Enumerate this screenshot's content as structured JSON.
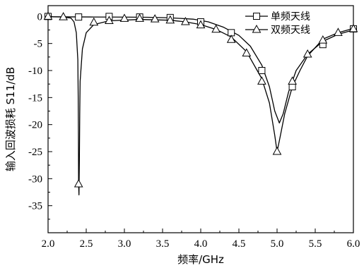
{
  "chart_data": {
    "type": "line",
    "title": "",
    "xlabel": "频率/GHz",
    "ylabel": "输入回波损耗 S11/dB",
    "xlim": [
      2.0,
      6.0
    ],
    "ylim": [
      -40,
      2
    ],
    "xticks": [
      "2.0",
      "2.5",
      "3.0",
      "3.5",
      "4.0",
      "4.5",
      "5.0",
      "5.5",
      "6.0"
    ],
    "yticks": [
      "0",
      "-5",
      "-10",
      "-15",
      "-20",
      "-25",
      "-30",
      "-35"
    ],
    "xtick_values": [
      2.0,
      2.5,
      3.0,
      3.5,
      4.0,
      4.5,
      5.0,
      5.5,
      6.0
    ],
    "ytick_values": [
      0,
      -5,
      -10,
      -15,
      -20,
      -25,
      -30,
      -35
    ],
    "grid": false,
    "legend_position": "top-right",
    "series": [
      {
        "name": "单频天线",
        "marker": "square",
        "curve": [
          [
            2.0,
            -0.05
          ],
          [
            2.3,
            -0.08
          ],
          [
            2.6,
            -0.1
          ],
          [
            3.0,
            -0.12
          ],
          [
            3.3,
            -0.15
          ],
          [
            3.6,
            -0.25
          ],
          [
            3.9,
            -0.5
          ],
          [
            4.1,
            -1.0
          ],
          [
            4.3,
            -2.0
          ],
          [
            4.5,
            -3.5
          ],
          [
            4.65,
            -5.5
          ],
          [
            4.8,
            -9.0
          ],
          [
            4.9,
            -13.0
          ],
          [
            4.97,
            -17.5
          ],
          [
            5.03,
            -19.7
          ],
          [
            5.08,
            -18.0
          ],
          [
            5.15,
            -14.0
          ],
          [
            5.25,
            -10.0
          ],
          [
            5.4,
            -7.0
          ],
          [
            5.6,
            -4.6
          ],
          [
            5.8,
            -3.3
          ],
          [
            6.0,
            -2.5
          ]
        ],
        "markers": [
          [
            2.0,
            0.0
          ],
          [
            2.4,
            -0.1
          ],
          [
            2.8,
            0.0
          ],
          [
            3.2,
            -0.1
          ],
          [
            3.6,
            -0.2
          ],
          [
            4.0,
            -1.0
          ],
          [
            4.4,
            -3.0
          ],
          [
            4.8,
            -10.0
          ],
          [
            5.2,
            -13.0
          ],
          [
            5.6,
            -5.2
          ],
          [
            6.0,
            -2.3
          ]
        ]
      },
      {
        "name": "双频天线",
        "marker": "triangle",
        "curve": [
          [
            2.0,
            -0.05
          ],
          [
            2.2,
            -0.1
          ],
          [
            2.3,
            -0.3
          ],
          [
            2.34,
            -1.0
          ],
          [
            2.37,
            -3.0
          ],
          [
            2.39,
            -8.0
          ],
          [
            2.395,
            -15.0
          ],
          [
            2.398,
            -22.0
          ],
          [
            2.4,
            -31.0
          ],
          [
            2.405,
            -33.0
          ],
          [
            2.41,
            -27.0
          ],
          [
            2.415,
            -18.0
          ],
          [
            2.42,
            -12.0
          ],
          [
            2.45,
            -6.0
          ],
          [
            2.5,
            -3.0
          ],
          [
            2.6,
            -1.5
          ],
          [
            2.8,
            -0.8
          ],
          [
            3.2,
            -0.55
          ],
          [
            3.6,
            -0.7
          ],
          [
            3.8,
            -1.0
          ],
          [
            4.0,
            -1.5
          ],
          [
            4.2,
            -2.4
          ],
          [
            4.4,
            -3.8
          ],
          [
            4.6,
            -6.5
          ],
          [
            4.8,
            -11.5
          ],
          [
            4.9,
            -16.0
          ],
          [
            4.97,
            -22.0
          ],
          [
            5.0,
            -25.0
          ],
          [
            5.03,
            -23.0
          ],
          [
            5.1,
            -18.0
          ],
          [
            5.2,
            -13.0
          ],
          [
            5.3,
            -10.0
          ],
          [
            5.4,
            -7.3
          ],
          [
            5.6,
            -4.2
          ],
          [
            5.8,
            -3.0
          ],
          [
            6.0,
            -2.2
          ]
        ],
        "markers": [
          [
            2.0,
            0.0
          ],
          [
            2.2,
            -0.1
          ],
          [
            2.4,
            -31.0
          ],
          [
            2.6,
            -1.1
          ],
          [
            2.8,
            -0.8
          ],
          [
            3.0,
            -0.4
          ],
          [
            3.2,
            -0.4
          ],
          [
            3.4,
            -0.5
          ],
          [
            3.6,
            -0.7
          ],
          [
            3.8,
            -1.0
          ],
          [
            4.0,
            -1.6
          ],
          [
            4.2,
            -2.4
          ],
          [
            4.4,
            -4.3
          ],
          [
            4.6,
            -6.8
          ],
          [
            4.8,
            -12.0
          ],
          [
            5.0,
            -25.0
          ],
          [
            5.2,
            -12.0
          ],
          [
            5.4,
            -7.0
          ],
          [
            5.6,
            -4.4
          ],
          [
            5.8,
            -3.0
          ],
          [
            6.0,
            -2.3
          ]
        ]
      }
    ]
  }
}
